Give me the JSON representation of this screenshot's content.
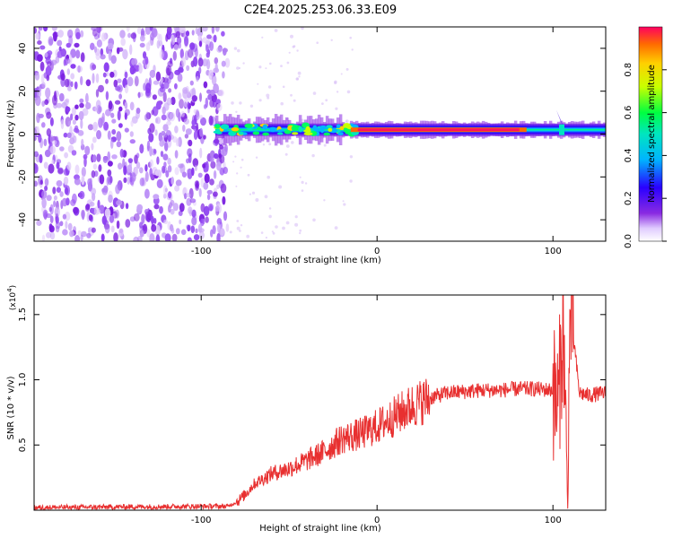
{
  "title": "C2E4.2025.253.06.33.E09",
  "colors": {
    "snr_line": "#e83030",
    "axis": "#000000",
    "noise_points": "#7a1fe0",
    "noise_faint": "#d8bff7"
  },
  "chart_data": [
    {
      "type": "heatmap",
      "name": "spectrogram",
      "xlabel": "Height of straight line (km)",
      "ylabel": "Frequency (Hz)",
      "xlim": [
        -195,
        130
      ],
      "ylim": [
        -50,
        50
      ],
      "xticks": [
        -100,
        0,
        100
      ],
      "xtick_labels": [
        "-100",
        "0",
        "100"
      ],
      "yticks": [
        -40,
        -20,
        0,
        20,
        40
      ],
      "ytick_labels": [
        "-40",
        "-20",
        "0",
        "20",
        "40"
      ],
      "noise_region_km": [
        -195,
        -85
      ],
      "signal_band": {
        "x_start_km": -92,
        "x_end_km": 130,
        "center_freq_hz": 2,
        "strong_segment_km": [
          -15,
          85
        ],
        "spike_near_km": 105
      },
      "colorbar": {
        "label": "Normalized spectral amplitude",
        "range": [
          0.0,
          1.0
        ],
        "ticks": [
          0.0,
          0.2,
          0.4,
          0.6,
          0.8
        ],
        "tick_labels": [
          "0.0",
          "0.2",
          "0.4",
          "0.6",
          "0.8"
        ]
      }
    },
    {
      "type": "line",
      "name": "snr",
      "xlabel": "Height of straight line (km)",
      "ylabel": "SNR (10 * v/v)",
      "multiplier": "(x10",
      "multiplier_exp": "4",
      "multiplier_close": ")",
      "xlim": [
        -195,
        130
      ],
      "ylim": [
        0.0,
        1.65
      ],
      "xticks": [
        -100,
        0,
        100
      ],
      "xtick_labels": [
        "-100",
        "0",
        "100"
      ],
      "yticks": [
        0.5,
        1.0,
        1.5
      ],
      "ytick_labels": [
        "0.5",
        "1.0",
        "1.5"
      ],
      "series": [
        {
          "name": "SNR",
          "x": [
            -195,
            -100,
            -85,
            -80,
            -75,
            -70,
            -60,
            -50,
            -40,
            -30,
            -20,
            -10,
            0,
            10,
            20,
            30,
            40,
            50,
            60,
            70,
            80,
            90,
            100,
            103,
            106,
            108,
            110,
            115,
            120,
            130
          ],
          "y": [
            0.02,
            0.03,
            0.03,
            0.06,
            0.12,
            0.2,
            0.28,
            0.32,
            0.38,
            0.45,
            0.55,
            0.58,
            0.64,
            0.72,
            0.8,
            0.86,
            0.9,
            0.91,
            0.92,
            0.92,
            0.93,
            0.93,
            0.92,
            0.8,
            1.45,
            0.1,
            1.55,
            0.9,
            0.88,
            0.9
          ]
        }
      ]
    }
  ]
}
